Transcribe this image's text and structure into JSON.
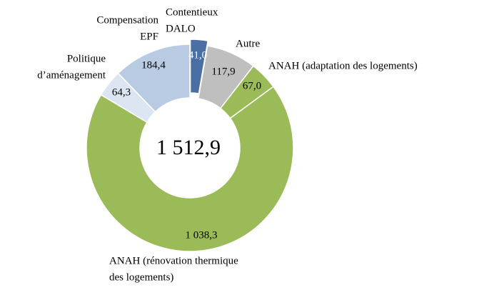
{
  "chart_data": {
    "type": "donut",
    "categories": [
      [
        "Contentieux",
        "DALO"
      ],
      [
        "Autre"
      ],
      [
        "ANAH (adaptation des logements)"
      ],
      [
        "ANAH (rénovation thermique",
        "des logements)"
      ],
      [
        "Politique",
        "d’aménagement"
      ],
      [
        "Compensation",
        "EPF"
      ]
    ],
    "values": [
      41.0,
      117.9,
      67.0,
      1038.3,
      64.3,
      184.4
    ],
    "value_labels": [
      "41,0",
      "117,9",
      "67,0",
      "1 038,3",
      "64,3",
      "184,4"
    ],
    "colors": [
      "#4a6fa5",
      "#bfbfbf",
      "#9bbb59",
      "#9bbb59",
      "#dce6f2",
      "#b9cbe3"
    ],
    "total": {
      "value": 1512.9,
      "label": "1 512,9"
    }
  }
}
